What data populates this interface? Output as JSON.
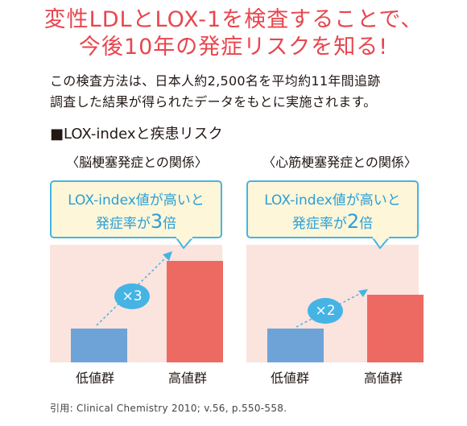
{
  "headline": {
    "line1": "変性LDLとLOX-1を検査することで、",
    "line2": "今後10年の発症リスクを知る!"
  },
  "intro": {
    "line1": "この検査方法は、日本人約2,500名を平均約11年間追跡",
    "line2": "調査した結果が得られたデータをもとに実施されます。"
  },
  "section_title": "■LOX-indexと疾患リスク",
  "colors": {
    "headline": "#e8464e",
    "accent": "#45b4e4",
    "bubble_bg": "#fdf6d8",
    "panel_bg": "#fbe3de",
    "bar_low": "#6ea3d7",
    "bar_high": "#ec6a62"
  },
  "chart_data": [
    {
      "type": "bar",
      "title": "〈脳梗塞発症との関係〉",
      "categories": [
        "低値群",
        "高値群"
      ],
      "values": [
        1,
        3
      ],
      "callout": {
        "line1": "LOX-index値が高いと",
        "line2_pre": "発症率が",
        "line2_num": "3",
        "line2_post": "倍"
      },
      "multiplier": "×3"
    },
    {
      "type": "bar",
      "title": "〈心筋梗塞発症との関係〉",
      "categories": [
        "低値群",
        "高値群"
      ],
      "values": [
        1,
        2
      ],
      "callout": {
        "line1": "LOX-index値が高いと",
        "line2_pre": "発症率が",
        "line2_num": "2",
        "line2_post": "倍"
      },
      "multiplier": "×2"
    }
  ],
  "citation": "引用: Clinical Chemistry 2010; v.56, p.550-558."
}
